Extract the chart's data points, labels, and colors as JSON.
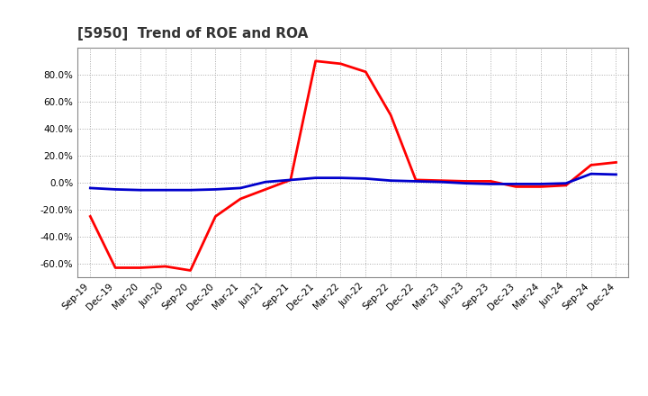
{
  "title": "[5950]  Trend of ROE and ROA",
  "x_labels": [
    "Sep-19",
    "Dec-19",
    "Mar-20",
    "Jun-20",
    "Sep-20",
    "Dec-20",
    "Mar-21",
    "Jun-21",
    "Sep-21",
    "Dec-21",
    "Mar-22",
    "Jun-22",
    "Sep-22",
    "Dec-22",
    "Mar-23",
    "Jun-23",
    "Sep-23",
    "Dec-23",
    "Mar-24",
    "Jun-24",
    "Sep-24",
    "Dec-24"
  ],
  "roe": [
    -25.0,
    -63.0,
    -63.0,
    -62.0,
    -65.0,
    -25.0,
    -12.0,
    -5.0,
    2.0,
    90.0,
    88.0,
    82.0,
    50.0,
    2.0,
    1.5,
    1.0,
    1.0,
    -3.0,
    -3.0,
    -2.0,
    13.0,
    15.0
  ],
  "roa": [
    -4.0,
    -5.0,
    -5.5,
    -5.5,
    -5.5,
    -5.0,
    -4.0,
    0.5,
    2.0,
    3.5,
    3.5,
    3.0,
    1.5,
    1.0,
    0.5,
    -0.5,
    -1.0,
    -1.0,
    -1.0,
    -0.5,
    6.5,
    6.0
  ],
  "roe_color": "#ff0000",
  "roa_color": "#0000cc",
  "bg_color": "#ffffff",
  "plot_bg_color": "#ffffff",
  "grid_color": "#aaaaaa",
  "ylim": [
    -70,
    100
  ],
  "yticks": [
    -60.0,
    -40.0,
    -20.0,
    0.0,
    20.0,
    40.0,
    60.0,
    80.0
  ],
  "line_width": 2.0,
  "title_fontsize": 11,
  "tick_fontsize": 7.5,
  "legend_fontsize": 9.5
}
